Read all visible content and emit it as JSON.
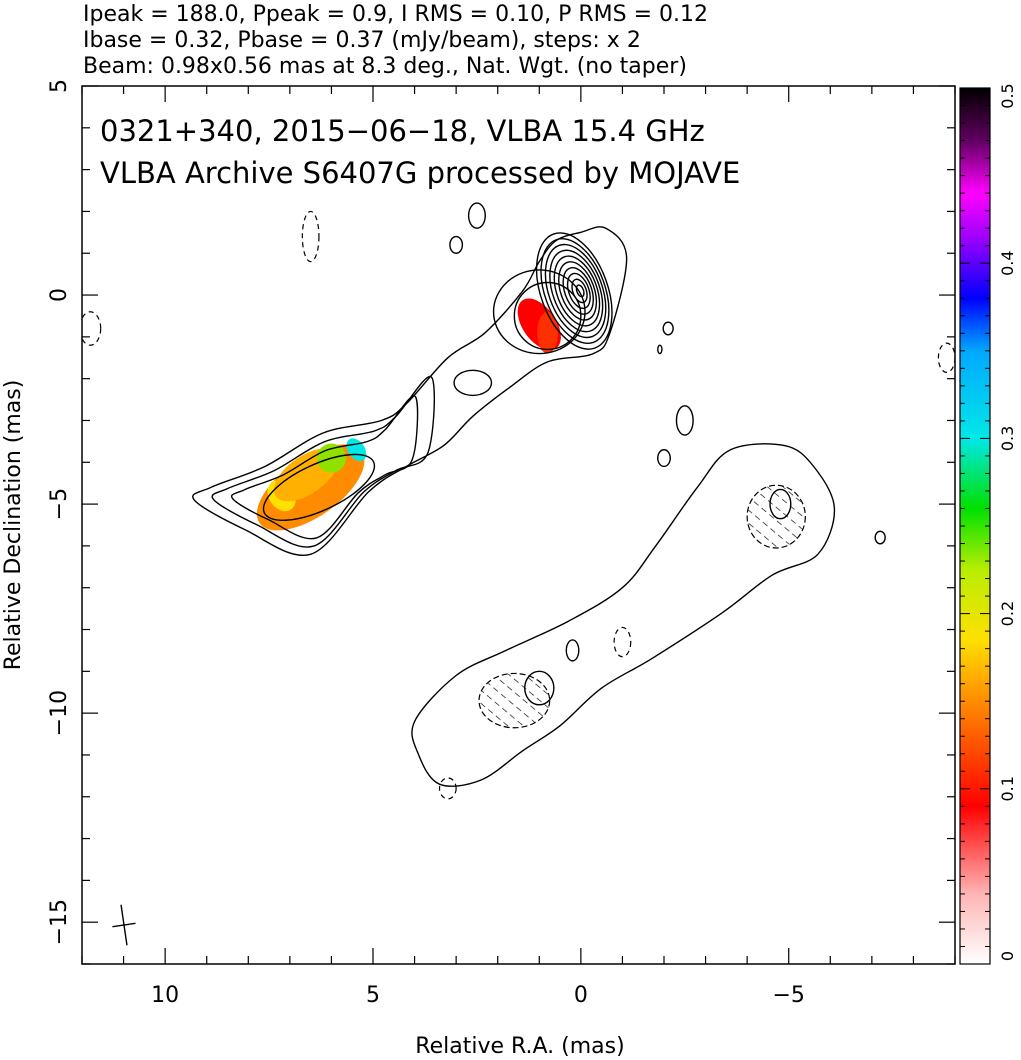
{
  "header": {
    "line1": "Ipeak = 188.0, Ppeak = 0.9, I RMS = 0.10, P RMS = 0.12",
    "line2": "Ibase = 0.32, Pbase = 0.37 (mJy/beam), steps: x 2",
    "line3": "Beam: 0.98x0.56 mas at 8.3 deg., Nat. Wgt. (no taper)"
  },
  "chart_data": {
    "type": "heatmap",
    "title": "0321+340, 2015−06−18, VLBA 15.4 GHz",
    "subtitle": "VLBA Archive S6407G processed by MOJAVE",
    "xlabel": "Relative R.A. (mas)",
    "ylabel": "Relative Declination (mas)",
    "xlim": [
      12,
      -9
    ],
    "ylim": [
      -16,
      5
    ],
    "x_ticks": [
      10,
      5,
      0,
      -5
    ],
    "x_tick_labels": [
      "10",
      "5",
      "0",
      "−5"
    ],
    "y_ticks": [
      5,
      0,
      -5,
      -10,
      -15
    ],
    "y_tick_labels": [
      "5",
      "0",
      "−5",
      "−10",
      "−15"
    ],
    "colorbar": {
      "range": [
        0,
        0.5
      ],
      "ticks": [
        0,
        0.1,
        0.2,
        0.3,
        0.4,
        0.5
      ],
      "tick_labels": [
        "0",
        "0.1",
        "0.2",
        "0.3",
        "0.4",
        "0.5"
      ]
    },
    "contours": {
      "core": {
        "center": [
          0,
          0.1
        ],
        "axes": [
          0.7,
          1.0
        ],
        "levels": 10
      },
      "jet": [
        {
          "x": 0.0,
          "y": 1.5
        },
        {
          "x": -0.6,
          "y": 1.6
        },
        {
          "x": -1.1,
          "y": 0.9
        },
        {
          "x": -0.7,
          "y": -0.9
        },
        {
          "x": -0.3,
          "y": -1.4
        },
        {
          "x": 0.8,
          "y": -1.6
        },
        {
          "x": 1.7,
          "y": -2.2
        },
        {
          "x": 2.6,
          "y": -2.9
        },
        {
          "x": 3.3,
          "y": -3.6
        },
        {
          "x": 4.2,
          "y": -4.1
        },
        {
          "x": 5.1,
          "y": -4.7
        },
        {
          "x": 6.5,
          "y": -6.2
        },
        {
          "x": 8.1,
          "y": -5.6
        },
        {
          "x": 9.3,
          "y": -4.9
        },
        {
          "x": 8.9,
          "y": -4.6
        },
        {
          "x": 7.6,
          "y": -4.1
        },
        {
          "x": 6.2,
          "y": -3.3
        },
        {
          "x": 4.8,
          "y": -3.0
        },
        {
          "x": 4.2,
          "y": -2.6
        },
        {
          "x": 3.2,
          "y": -1.5
        },
        {
          "x": 2.3,
          "y": -0.9
        },
        {
          "x": 1.4,
          "y": 0.1
        },
        {
          "x": 1.0,
          "y": 0.8
        },
        {
          "x": 0.6,
          "y": 1.3
        }
      ],
      "counter_jet": [
        {
          "x": 4.0,
          "y": -10.2
        },
        {
          "x": 3.9,
          "y": -11.0
        },
        {
          "x": 3.4,
          "y": -11.7
        },
        {
          "x": 2.4,
          "y": -11.6
        },
        {
          "x": 1.4,
          "y": -10.9
        },
        {
          "x": 0.5,
          "y": -10.3
        },
        {
          "x": -0.5,
          "y": -9.4
        },
        {
          "x": -1.7,
          "y": -8.7
        },
        {
          "x": -3.4,
          "y": -7.6
        },
        {
          "x": -4.6,
          "y": -6.7
        },
        {
          "x": -5.7,
          "y": -6.2
        },
        {
          "x": -6.1,
          "y": -5.1
        },
        {
          "x": -5.6,
          "y": -4.1
        },
        {
          "x": -4.9,
          "y": -3.6
        },
        {
          "x": -3.6,
          "y": -3.7
        },
        {
          "x": -2.8,
          "y": -4.6
        },
        {
          "x": -1.8,
          "y": -6.0
        },
        {
          "x": -1.0,
          "y": -7.0
        },
        {
          "x": 0.3,
          "y": -7.8
        },
        {
          "x": 1.8,
          "y": -8.5
        },
        {
          "x": 3.0,
          "y": -9.1
        }
      ]
    },
    "polarization_patches": [
      {
        "x": 1.0,
        "y": -0.7,
        "rx": 0.4,
        "ry": 0.7,
        "value": 0.12
      },
      {
        "x": 6.5,
        "y": -4.6,
        "rx": 1.5,
        "ry": 0.7,
        "value": 0.18
      },
      {
        "x": 7.2,
        "y": -4.8,
        "rx": 0.3,
        "ry": 0.4,
        "value": 0.22
      },
      {
        "x": 5.4,
        "y": -3.7,
        "rx": 0.2,
        "ry": 0.3,
        "value": 0.3
      }
    ],
    "beam": {
      "major_mas": 0.98,
      "minor_mas": 0.56,
      "pa_deg": 8.3,
      "position": "bottom-left"
    }
  }
}
